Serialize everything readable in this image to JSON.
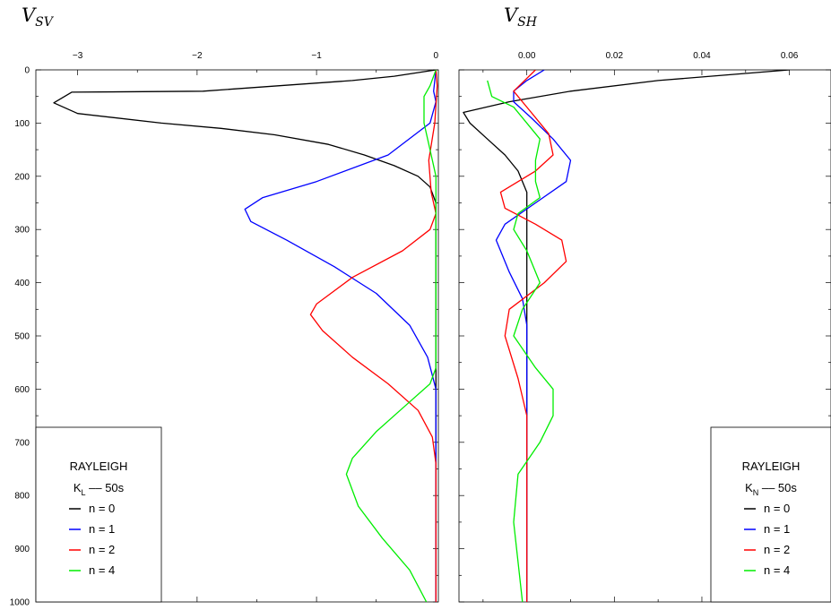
{
  "chart_data": [
    {
      "type": "line",
      "title": "V",
      "title_subscript": "SV",
      "y_axis": "depth",
      "ylim": [
        0,
        1000
      ],
      "yticks": [
        0,
        100,
        200,
        300,
        400,
        500,
        600,
        700,
        800,
        900,
        1000
      ],
      "ytick_labels": [
        "0",
        "100",
        "200",
        "300",
        "400",
        "500",
        "600",
        "700",
        "800",
        "900",
        "1000"
      ],
      "xlim": [
        -3.35,
        0.02
      ],
      "xticks": [
        -3,
        -2,
        -1,
        0
      ],
      "xtick_labels": [
        "−3",
        "−2",
        "−1",
        "0"
      ],
      "legend": {
        "position": "bottom-left",
        "title": "RAYLEIGH",
        "kernel": "K",
        "kernel_sub": "L",
        "period": " –– 50s",
        "entries": [
          "n = 0",
          "n = 1",
          "n = 2",
          "n = 4"
        ]
      },
      "series": [
        {
          "name": "n = 0",
          "color": "#000000",
          "points": [
            [
              0,
              0
            ],
            [
              -0.35,
              12
            ],
            [
              -0.7,
              20
            ],
            [
              -1.95,
              40
            ],
            [
              -3.05,
              42
            ],
            [
              -3.2,
              62
            ],
            [
              -3.0,
              82
            ],
            [
              -2.3,
              100
            ],
            [
              -1.8,
              110
            ],
            [
              -1.35,
              122
            ],
            [
              -0.9,
              140
            ],
            [
              -0.6,
              160
            ],
            [
              -0.35,
              180
            ],
            [
              -0.15,
              200
            ],
            [
              -0.05,
              220
            ],
            [
              0,
              250
            ],
            [
              0,
              1000
            ]
          ]
        },
        {
          "name": "n = 1",
          "color": "#0000ff",
          "points": [
            [
              0,
              0
            ],
            [
              -0.02,
              40
            ],
            [
              0,
              60
            ],
            [
              -0.05,
              100
            ],
            [
              -0.4,
              160
            ],
            [
              -1.0,
              210
            ],
            [
              -1.45,
              240
            ],
            [
              -1.6,
              262
            ],
            [
              -1.55,
              285
            ],
            [
              -1.25,
              320
            ],
            [
              -0.85,
              370
            ],
            [
              -0.5,
              420
            ],
            [
              -0.22,
              480
            ],
            [
              -0.07,
              540
            ],
            [
              0,
              600
            ],
            [
              0,
              1000
            ]
          ]
        },
        {
          "name": "n = 2",
          "color": "#ff0000",
          "points": [
            [
              0,
              0
            ],
            [
              0.01,
              30
            ],
            [
              -0.01,
              100
            ],
            [
              -0.06,
              170
            ],
            [
              -0.04,
              230
            ],
            [
              0,
              270
            ],
            [
              -0.05,
              300
            ],
            [
              -0.28,
              340
            ],
            [
              -0.7,
              390
            ],
            [
              -1.0,
              440
            ],
            [
              -1.05,
              460
            ],
            [
              -0.95,
              490
            ],
            [
              -0.7,
              540
            ],
            [
              -0.4,
              590
            ],
            [
              -0.15,
              640
            ],
            [
              -0.03,
              690
            ],
            [
              0,
              740
            ],
            [
              0,
              1000
            ]
          ]
        },
        {
          "name": "n = 4",
          "color": "#00ee00",
          "points": [
            [
              0,
              0
            ],
            [
              -0.05,
              30
            ],
            [
              -0.1,
              50
            ],
            [
              -0.1,
              100
            ],
            [
              -0.05,
              150
            ],
            [
              0,
              200
            ],
            [
              0,
              560
            ],
            [
              -0.05,
              590
            ],
            [
              -0.25,
              630
            ],
            [
              -0.5,
              680
            ],
            [
              -0.7,
              730
            ],
            [
              -0.75,
              760
            ],
            [
              -0.65,
              820
            ],
            [
              -0.45,
              880
            ],
            [
              -0.22,
              940
            ],
            [
              -0.08,
              1000
            ]
          ]
        }
      ]
    },
    {
      "type": "line",
      "title": "V",
      "title_subscript": "SH",
      "y_axis": "depth",
      "ylim": [
        0,
        1000
      ],
      "yticks": [
        0,
        100,
        200,
        300,
        400,
        500,
        600,
        700,
        800,
        900,
        1000
      ],
      "xlim": [
        -0.0155,
        0.0695
      ],
      "xticks": [
        0,
        0.02,
        0.04,
        0.06
      ],
      "xtick_labels": [
        "0.00",
        "0.02",
        "0.04",
        "0.06"
      ],
      "legend": {
        "position": "bottom-right",
        "title": "RAYLEIGH",
        "kernel": "K",
        "kernel_sub": "N",
        "period": " –– 50s",
        "entries": [
          "n = 0",
          "n = 1",
          "n = 2",
          "n = 4"
        ]
      },
      "series": [
        {
          "name": "n = 0",
          "color": "#000000",
          "points": [
            [
              0.06,
              0
            ],
            [
              0.03,
              20
            ],
            [
              0.01,
              40
            ],
            [
              -0.004,
              60
            ],
            [
              -0.0145,
              80
            ],
            [
              -0.013,
              100
            ],
            [
              -0.009,
              130
            ],
            [
              -0.005,
              160
            ],
            [
              -0.002,
              190
            ],
            [
              0,
              230
            ],
            [
              0,
              1000
            ]
          ]
        },
        {
          "name": "n = 1",
          "color": "#0000ff",
          "points": [
            [
              0.004,
              0
            ],
            [
              0,
              20
            ],
            [
              -0.003,
              40
            ],
            [
              -0.003,
              60
            ],
            [
              0.001,
              90
            ],
            [
              0.006,
              130
            ],
            [
              0.01,
              170
            ],
            [
              0.009,
              210
            ],
            [
              0.002,
              250
            ],
            [
              -0.005,
              290
            ],
            [
              -0.007,
              320
            ],
            [
              -0.004,
              380
            ],
            [
              -0.001,
              430
            ],
            [
              0,
              480
            ],
            [
              0,
              1000
            ]
          ]
        },
        {
          "name": "n = 2",
          "color": "#ff0000",
          "points": [
            [
              0.002,
              0
            ],
            [
              -0.003,
              40
            ],
            [
              0.001,
              80
            ],
            [
              0.005,
              120
            ],
            [
              0.006,
              160
            ],
            [
              0.002,
              190
            ],
            [
              -0.006,
              230
            ],
            [
              -0.005,
              260
            ],
            [
              0.002,
              290
            ],
            [
              0.008,
              320
            ],
            [
              0.009,
              360
            ],
            [
              0.004,
              400
            ],
            [
              -0.004,
              450
            ],
            [
              -0.005,
              500
            ],
            [
              -0.002,
              580
            ],
            [
              0,
              650
            ],
            [
              0,
              1000
            ]
          ]
        },
        {
          "name": "n = 4",
          "color": "#00ee00",
          "points": [
            [
              -0.009,
              20
            ],
            [
              -0.008,
              50
            ],
            [
              -0.003,
              70
            ],
            [
              0,
              100
            ],
            [
              0.003,
              130
            ],
            [
              0.002,
              170
            ],
            [
              0.002,
              210
            ],
            [
              0.003,
              240
            ],
            [
              -0.002,
              270
            ],
            [
              -0.003,
              300
            ],
            [
              0,
              340
            ],
            [
              0.003,
              400
            ],
            [
              -0.001,
              450
            ],
            [
              -0.003,
              500
            ],
            [
              0.002,
              560
            ],
            [
              0.006,
              600
            ],
            [
              0.006,
              650
            ],
            [
              0.003,
              700
            ],
            [
              -0.002,
              760
            ],
            [
              -0.003,
              850
            ],
            [
              -0.001,
              1000
            ]
          ]
        }
      ]
    }
  ]
}
